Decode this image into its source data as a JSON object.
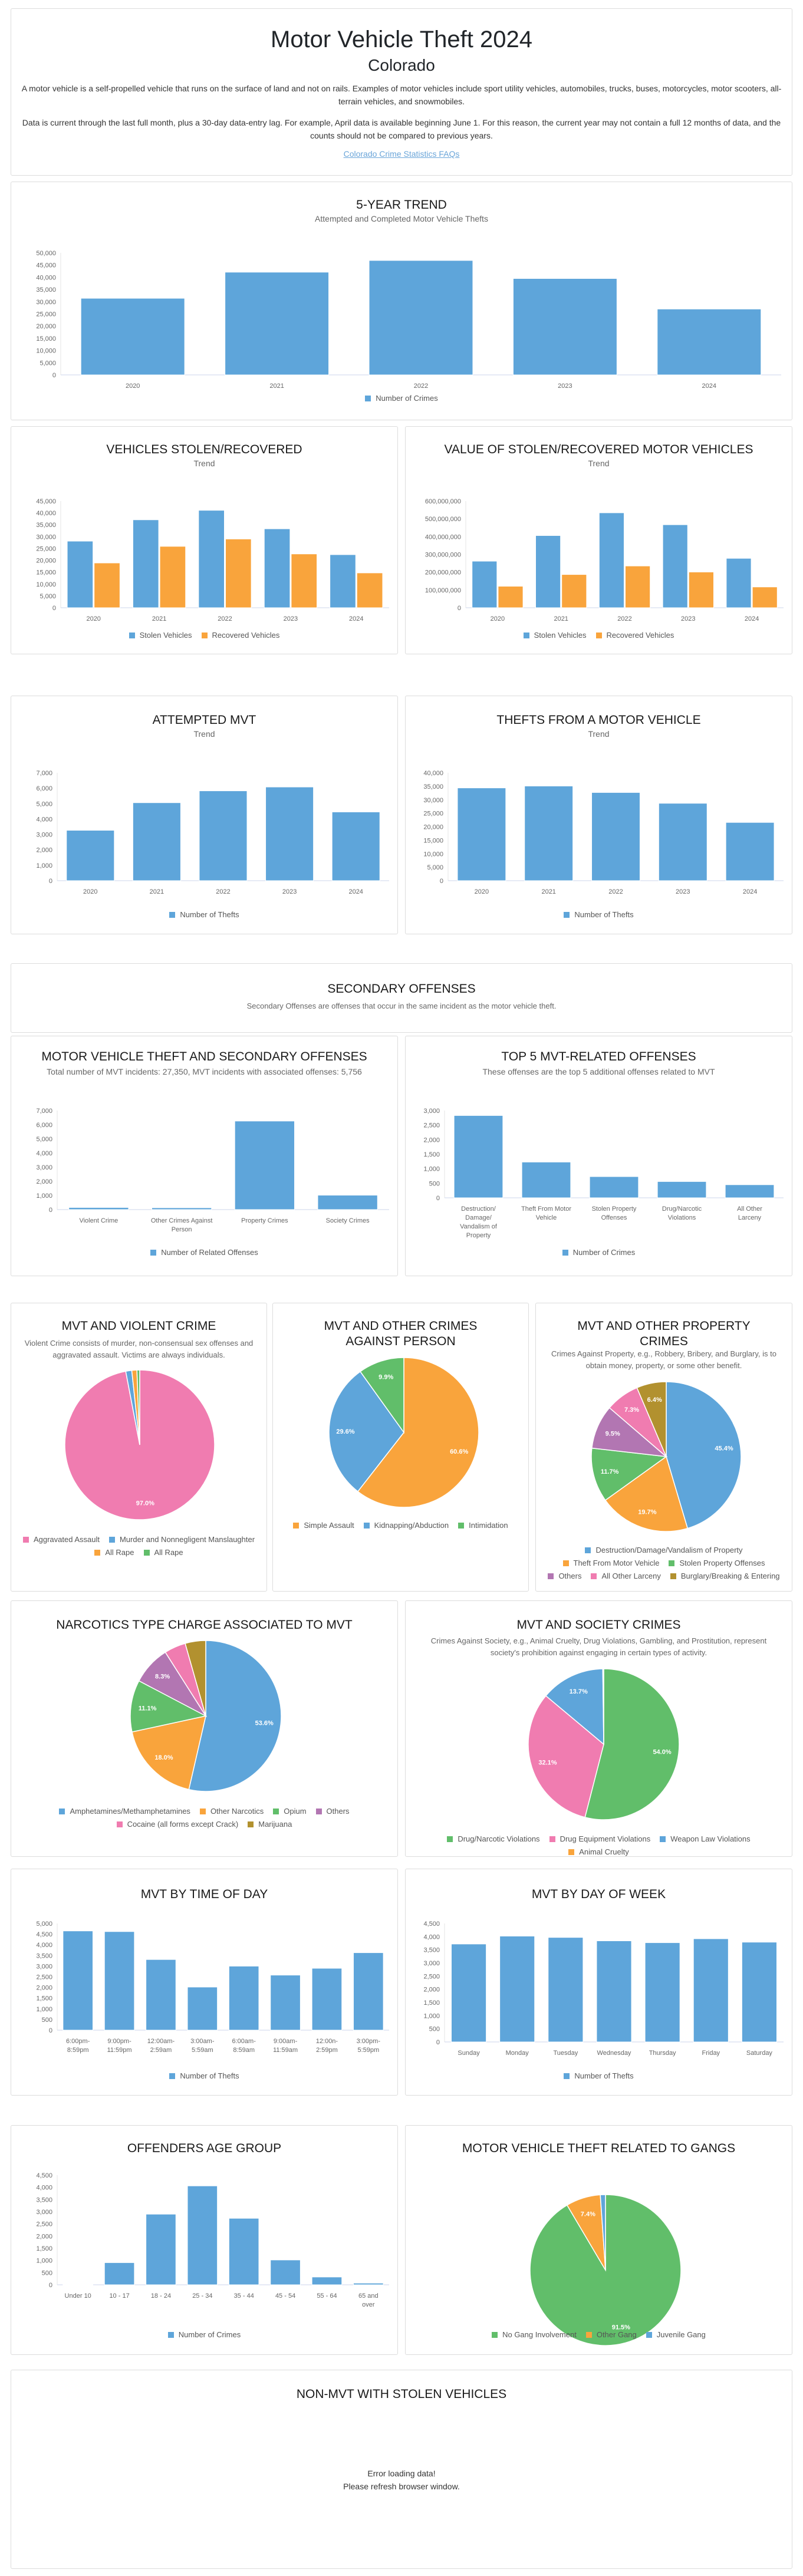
{
  "header": {
    "title": "Motor Vehicle Theft 2024",
    "state": "Colorado",
    "para1": "A motor vehicle is a self-propelled vehicle that runs on the surface of land and not on rails. Examples of motor vehicles include sport utility vehicles, automobiles, trucks, buses, motorcycles, motor scooters, all-terrain vehicles, and snowmobiles.",
    "para2": "Data is current through the last full month, plus a 30-day data-entry lag. For example, April data is available beginning June 1. For this reason, the current year may not contain a full 12 months of data, and the counts should not be compared to previous years.",
    "faq_link": "Colorado Crime Statistics FAQs"
  },
  "colors": {
    "blue": "#5ea5da",
    "orange": "#f9a43c",
    "green": "#61be6a",
    "pink": "#f07cb0",
    "purple": "#b276b2",
    "olive": "#b2912f",
    "link": "#6aa5d9"
  },
  "secondary": {
    "title": "SECONDARY OFFENSES",
    "subtitle": "Secondary Offenses are offenses that occur in the same incident as the motor vehicle theft."
  },
  "nonmvt": {
    "title": "NON-MVT WITH STOLEN VEHICLES",
    "error1": "Error loading data!",
    "error2": "Please refresh browser window."
  },
  "chart_data": [
    {
      "id": "five_year",
      "type": "bar",
      "title": "5-YEAR TREND",
      "subtitle": "Attempted and Completed Motor Vehicle Thefts",
      "categories": [
        "2020",
        "2021",
        "2022",
        "2023",
        "2024"
      ],
      "series": [
        {
          "name": "Number of Crimes",
          "color": "blue",
          "values": [
            31400,
            42100,
            46900,
            39500,
            27000
          ]
        }
      ],
      "ylim": [
        0,
        50000
      ],
      "ytick": 5000,
      "grid": false,
      "legend": "bottom"
    },
    {
      "id": "stolen_recovered",
      "type": "bar",
      "title": "VEHICLES STOLEN/RECOVERED",
      "subtitle": "Trend",
      "categories": [
        "2020",
        "2021",
        "2022",
        "2023",
        "2024"
      ],
      "series": [
        {
          "name": "Stolen Vehicles",
          "color": "blue",
          "values": [
            28100,
            37100,
            41100,
            33300,
            22400
          ]
        },
        {
          "name": "Recovered Vehicles",
          "color": "orange",
          "values": [
            18900,
            25900,
            29000,
            22700,
            14700
          ]
        }
      ],
      "ylim": [
        0,
        45000
      ],
      "ytick": 5000,
      "grid": false,
      "legend": "bottom"
    },
    {
      "id": "value_stolen_recovered",
      "type": "bar",
      "title": "VALUE OF STOLEN/RECOVERED MOTOR VEHICLES",
      "subtitle": "Trend",
      "categories": [
        "2020",
        "2021",
        "2022",
        "2023",
        "2024"
      ],
      "series": [
        {
          "name": "Stolen Vehicles",
          "color": "blue",
          "values": [
            262000000,
            406000000,
            534000000,
            467000000,
            278000000
          ]
        },
        {
          "name": "Recovered Vehicles",
          "color": "orange",
          "values": [
            121000000,
            187000000,
            235000000,
            201000000,
            117000000
          ]
        }
      ],
      "ylim": [
        0,
        600000000
      ],
      "ytick": 100000000,
      "grid": false,
      "legend": "bottom"
    },
    {
      "id": "attempted",
      "type": "bar",
      "title": "ATTEMPTED MVT",
      "subtitle": "Trend",
      "categories": [
        "2020",
        "2021",
        "2022",
        "2023",
        "2024"
      ],
      "series": [
        {
          "name": "Number of Thefts",
          "color": "blue",
          "values": [
            3270,
            5060,
            5830,
            6080,
            4460
          ]
        }
      ],
      "ylim": [
        0,
        7000
      ],
      "ytick": 1000,
      "grid": false,
      "legend": "bottom"
    },
    {
      "id": "thefts_from",
      "type": "bar",
      "title": "THEFTS FROM A MOTOR VEHICLE",
      "subtitle": "Trend",
      "categories": [
        "2020",
        "2021",
        "2022",
        "2023",
        "2024"
      ],
      "series": [
        {
          "name": "Number of Thefts",
          "color": "blue",
          "values": [
            34400,
            35100,
            32700,
            28700,
            21600
          ]
        }
      ],
      "ylim": [
        0,
        40000
      ],
      "ytick": 5000,
      "grid": false,
      "legend": "bottom"
    },
    {
      "id": "secondary_offenses",
      "type": "bar",
      "title": "MOTOR VEHICLE THEFT AND SECONDARY OFFENSES",
      "subtitle": "Total number of MVT incidents: 27,350, MVT incidents with associated offenses: 5,756",
      "categories": [
        "Violent Crime",
        "Other Crimes Against Person",
        "Property Crimes",
        "Society Crimes"
      ],
      "series": [
        {
          "name": "Number of Related Offenses",
          "color": "blue",
          "values": [
            150,
            130,
            6260,
            1020
          ]
        }
      ],
      "ylim": [
        0,
        7000
      ],
      "ytick": 1000,
      "grid": false,
      "legend": "bottom"
    },
    {
      "id": "top5",
      "type": "bar",
      "title": "TOP 5 MVT-RELATED OFFENSES",
      "subtitle": "These offenses are the top 5 additional offenses related to MVT",
      "categories": [
        "Destruction/ Damage/ Vandalism of Property",
        "Theft From Motor Vehicle",
        "Stolen Property Offenses",
        "Drug/Narcotic Violations",
        "All Other Larceny"
      ],
      "series": [
        {
          "name": "Number of Crimes",
          "color": "blue",
          "values": [
            2830,
            1230,
            730,
            560,
            450
          ]
        }
      ],
      "ylim": [
        0,
        3000
      ],
      "ytick": 500,
      "grid": false,
      "legend": "bottom"
    },
    {
      "id": "violent",
      "type": "pie",
      "title": "MVT AND VIOLENT CRIME",
      "subtitle": "Violent Crime consists of murder, non-consensual sex offenses and aggravated assault. Victims are always individuals.",
      "slices": [
        {
          "name": "Aggravated Assault",
          "color": "pink",
          "value": 97.0,
          "label": "97.0%"
        },
        {
          "name": "Murder and Nonnegligent Manslaughter",
          "color": "blue",
          "value": 1.3,
          "label": ""
        },
        {
          "name": "All Rape",
          "color": "orange",
          "value": 1.1,
          "label": ""
        },
        {
          "name": "All Rape",
          "color": "green",
          "value": 0.6,
          "label": ""
        }
      ],
      "legend": "bottom"
    },
    {
      "id": "person",
      "type": "pie",
      "title": "MVT AND OTHER CRIMES AGAINST PERSON",
      "subtitle": "",
      "slices": [
        {
          "name": "Simple Assault",
          "color": "orange",
          "value": 60.6,
          "label": "60.6%"
        },
        {
          "name": "Kidnapping/Abduction",
          "color": "blue",
          "value": 29.6,
          "label": "29.6%"
        },
        {
          "name": "Intimidation",
          "color": "green",
          "value": 9.9,
          "label": "9.9%"
        }
      ],
      "legend": "bottom"
    },
    {
      "id": "property",
      "type": "pie",
      "title": "MVT AND OTHER PROPERTY CRIMES",
      "subtitle": "Crimes Against Property, e.g., Robbery, Bribery, and Burglary, is to obtain money, property, or some other benefit.",
      "slices": [
        {
          "name": "Destruction/Damage/Vandalism of Property",
          "color": "blue",
          "value": 45.4,
          "label": "45.4%"
        },
        {
          "name": "Theft From Motor Vehicle",
          "color": "orange",
          "value": 19.7,
          "label": "19.7%"
        },
        {
          "name": "Stolen Property Offenses",
          "color": "green",
          "value": 11.7,
          "label": "11.7%"
        },
        {
          "name": "Others",
          "color": "purple",
          "value": 9.5,
          "label": "9.5%"
        },
        {
          "name": "All Other Larceny",
          "color": "pink",
          "value": 7.3,
          "label": "7.3%"
        },
        {
          "name": "Burglary/Breaking & Entering",
          "color": "olive",
          "value": 6.4,
          "label": "6.4%"
        }
      ],
      "legend": "bottom"
    },
    {
      "id": "narcotics",
      "type": "pie",
      "title": "NARCOTICS TYPE CHARGE ASSOCIATED TO MVT",
      "subtitle": "",
      "slices": [
        {
          "name": "Amphetamines/Methamphetamines",
          "color": "blue",
          "value": 53.6,
          "label": "53.6%"
        },
        {
          "name": "Other Narcotics",
          "color": "orange",
          "value": 18.0,
          "label": "18.0%"
        },
        {
          "name": "Opium",
          "color": "green",
          "value": 11.1,
          "label": "11.1%"
        },
        {
          "name": "Others",
          "color": "purple",
          "value": 8.3,
          "label": "8.3%"
        },
        {
          "name": "Cocaine (all forms except Crack)",
          "color": "pink",
          "value": 4.6,
          "label": ""
        },
        {
          "name": "Marijuana",
          "color": "olive",
          "value": 4.4,
          "label": ""
        }
      ],
      "legend": "bottom"
    },
    {
      "id": "society",
      "type": "pie",
      "title": "MVT AND SOCIETY CRIMES",
      "subtitle": "Crimes Against Society, e.g., Animal Cruelty, Drug Violations, Gambling, and Prostitution, represent society's prohibition against engaging in certain types of activity.",
      "slices": [
        {
          "name": "Drug/Narcotic Violations",
          "color": "green",
          "value": 54.0,
          "label": "54.0%"
        },
        {
          "name": "Drug Equipment Violations",
          "color": "pink",
          "value": 32.1,
          "label": "32.1%"
        },
        {
          "name": "Weapon Law Violations",
          "color": "blue",
          "value": 13.7,
          "label": "13.7%"
        },
        {
          "name": "Animal Cruelty",
          "color": "orange",
          "value": 0.2,
          "label": ""
        }
      ],
      "legend": "bottom"
    },
    {
      "id": "time_of_day",
      "type": "bar",
      "title": "MVT BY TIME OF DAY",
      "subtitle": "",
      "categories": [
        "6:00pm- 8:59pm",
        "9:00pm- 11:59pm",
        "12:00am- 2:59am",
        "3:00am- 5:59am",
        "6:00am- 8:59am",
        "9:00am- 11:59am",
        "12:00n- 2:59pm",
        "3:00pm- 5:59pm"
      ],
      "series": [
        {
          "name": "Number of Thefts",
          "color": "blue",
          "values": [
            4650,
            4620,
            3310,
            2020,
            3000,
            2580,
            2900,
            3630
          ]
        }
      ],
      "ylim": [
        0,
        5000
      ],
      "ytick": 500,
      "grid": false,
      "legend": "bottom"
    },
    {
      "id": "day_of_week",
      "type": "bar",
      "title": "MVT BY DAY OF WEEK",
      "subtitle": "",
      "categories": [
        "Sunday",
        "Monday",
        "Tuesday",
        "Wednesday",
        "Thursday",
        "Friday",
        "Saturday"
      ],
      "series": [
        {
          "name": "Number of Thefts",
          "color": "blue",
          "values": [
            3720,
            4020,
            3970,
            3840,
            3770,
            3920,
            3790
          ]
        }
      ],
      "ylim": [
        0,
        4500
      ],
      "ytick": 500,
      "grid": false,
      "legend": "bottom"
    },
    {
      "id": "age_group",
      "type": "bar",
      "title": "OFFENDERS AGE GROUP",
      "subtitle": "",
      "categories": [
        "Under 10",
        "10 - 17",
        "18 - 24",
        "25 - 34",
        "35 - 44",
        "45 - 54",
        "55 - 64",
        "65 and over"
      ],
      "series": [
        {
          "name": "Number of Crimes",
          "color": "blue",
          "values": [
            10,
            910,
            2900,
            4060,
            2730,
            1020,
            320,
            70
          ]
        }
      ],
      "ylim": [
        0,
        4500
      ],
      "ytick": 500,
      "grid": false,
      "legend": "bottom"
    },
    {
      "id": "gangs",
      "type": "pie",
      "title": "MOTOR VEHICLE THEFT RELATED TO GANGS",
      "subtitle": "",
      "slices": [
        {
          "name": "No Gang Involvement",
          "color": "green",
          "value": 91.5,
          "label": "91.5%"
        },
        {
          "name": "Other Gang",
          "color": "orange",
          "value": 7.4,
          "label": "7.4%"
        },
        {
          "name": "Juvenile Gang",
          "color": "blue",
          "value": 1.1,
          "label": ""
        }
      ],
      "legend": "bottom"
    }
  ]
}
